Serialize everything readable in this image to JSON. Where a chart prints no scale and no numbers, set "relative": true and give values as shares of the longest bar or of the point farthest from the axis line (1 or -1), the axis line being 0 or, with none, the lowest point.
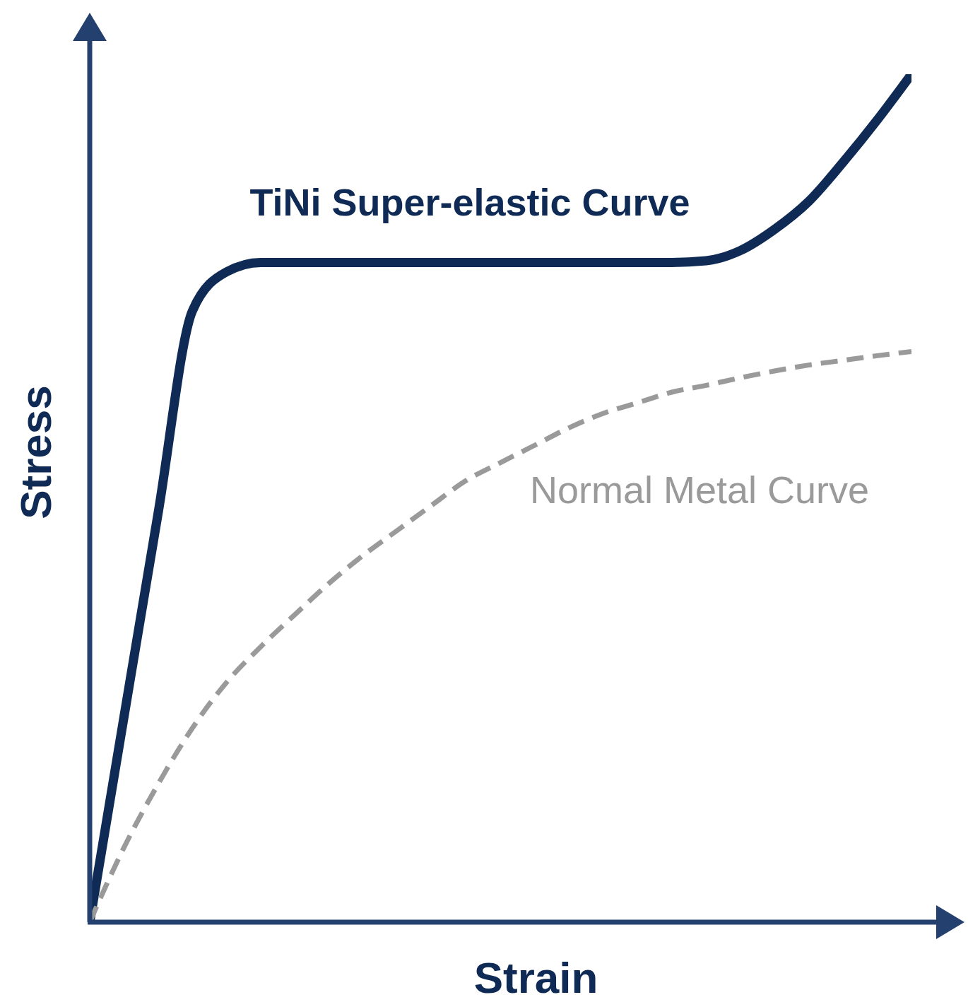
{
  "chart_data": {
    "type": "line",
    "relative": true,
    "xlabel": "Strain",
    "ylabel": "Stress",
    "tick_labels": false,
    "marker": "none",
    "legend": false,
    "grid": false,
    "categories": [
      null,
      null,
      null,
      null,
      null,
      null,
      null,
      null,
      null,
      null,
      null,
      null,
      null,
      null,
      null,
      null,
      null,
      null,
      null,
      null,
      null,
      null,
      null,
      null,
      null
    ],
    "series": [
      {
        "name": "TiNi Super-elastic Curve",
        "color": "#0f2a55",
        "line_style": "solid",
        "values": [
          0,
          0.242,
          0.483,
          0.721,
          0.767,
          0.778,
          0.778,
          0.778,
          0.778,
          0.778,
          0.778,
          0.778,
          0.778,
          0.778,
          0.778,
          0.778,
          0.778,
          0.778,
          0.78,
          0.792,
          0.817,
          0.85,
          0.896,
          0.946,
          1.0
        ]
      },
      {
        "name": "Normal Metal Curve",
        "color": "#9a9a9a",
        "line_style": "dashed",
        "values": [
          0,
          0.088,
          0.163,
          0.229,
          0.283,
          0.325,
          0.363,
          0.4,
          0.433,
          0.4625,
          0.492,
          0.521,
          0.542,
          0.5625,
          0.583,
          0.6,
          0.6125,
          0.625,
          0.633,
          0.642,
          0.65,
          0.657,
          0.6625,
          0.668,
          0.673
        ]
      }
    ]
  }
}
